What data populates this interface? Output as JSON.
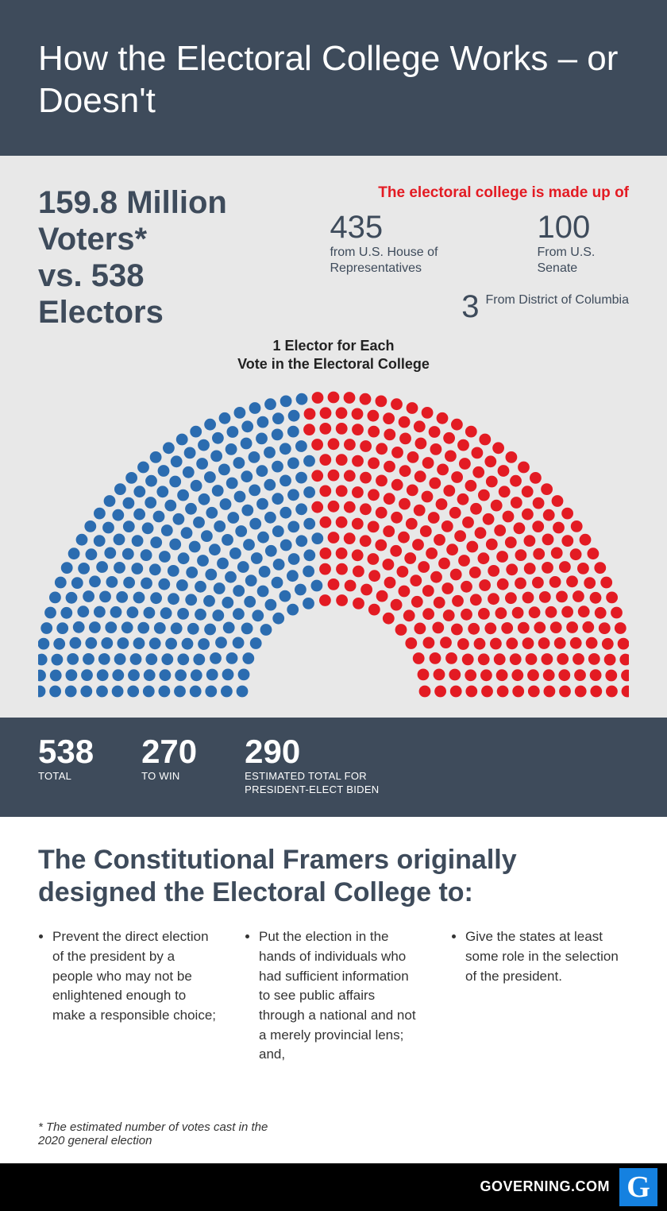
{
  "header": {
    "title": "How the Electoral College Works – or Doesn't"
  },
  "intro": {
    "main_stat_line1": "159.8 Million",
    "main_stat_line2": "Voters*",
    "main_stat_line3": "vs. 538",
    "main_stat_line4": "Electors",
    "red_label": "The electoral college is made up of",
    "breakdown": [
      {
        "num": "435",
        "cap": "from U.S. House of Representatives"
      },
      {
        "num": "100",
        "cap": "From U.S. Senate"
      },
      {
        "num": "3",
        "cap": "From District of Columbia"
      }
    ],
    "sub_caption_line1": "1 Elector for Each",
    "sub_caption_line2": "Vote in the Electoral College"
  },
  "hemicycle": {
    "total_dots": 538,
    "blue_color": "#2b6cb0",
    "red_color": "#e31b23",
    "background": "#e8e8e8",
    "dot_radius": 7.4,
    "inner_radius": 115,
    "outer_radius": 370,
    "rows": 14,
    "blue_count": 252,
    "red_count": 286
  },
  "stats_bar": [
    {
      "num": "538",
      "label": "TOTAL"
    },
    {
      "num": "270",
      "label": "TO WIN"
    },
    {
      "num": "290",
      "label": "ESTIMATED TOTAL FOR\nPRESIDENT-ELECT BIDEN"
    }
  ],
  "bottom": {
    "heading": "The Constitutional Framers originally designed the Electoral College to:",
    "bullets": [
      "Prevent the direct election of the president by a people who may not be enlightened enough to make a responsible choice;",
      "Put the election in the hands of individuals who had sufficient information to see public affairs through a national and not a merely provincial lens; and,",
      "Give the states at least some role in the selection of the president."
    ],
    "footnote": "* The estimated number of votes cast in the 2020 general election"
  },
  "footer": {
    "site": "GOVERNING.COM",
    "logo_letter": "G"
  }
}
